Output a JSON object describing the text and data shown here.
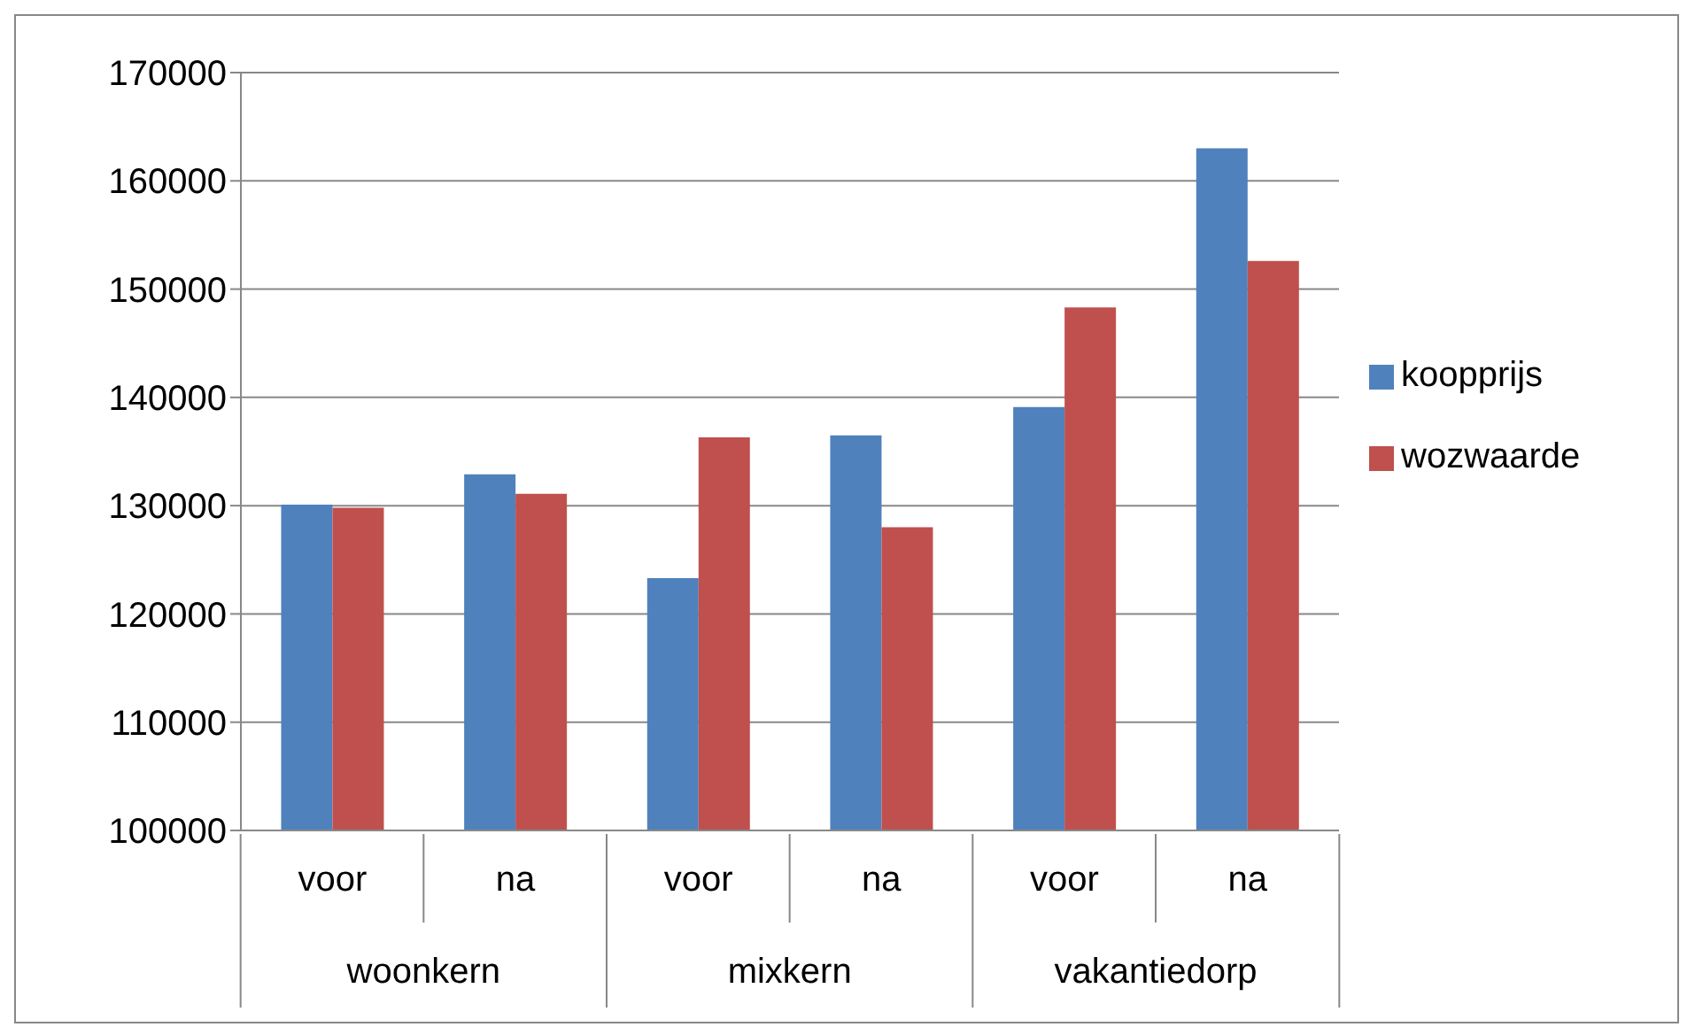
{
  "chart_data": {
    "type": "bar",
    "categories": [
      "voor",
      "na",
      "voor",
      "na",
      "voor",
      "na"
    ],
    "annotations": [
      "woonkern",
      "mixkern",
      "vakantiedorp"
    ],
    "series": [
      {
        "name": "koopprijs",
        "color": "#4f81bd",
        "values": [
          130100,
          132900,
          123300,
          136500,
          139100,
          163000
        ]
      },
      {
        "name": "wozwaarde",
        "color": "#c0504d",
        "values": [
          129800,
          131100,
          136300,
          128000,
          148300,
          152600
        ]
      }
    ],
    "ylim": [
      100000,
      170000
    ],
    "yticks": [
      100000,
      110000,
      120000,
      130000,
      140000,
      150000,
      160000,
      170000
    ],
    "grid": "y",
    "legend": "right"
  }
}
